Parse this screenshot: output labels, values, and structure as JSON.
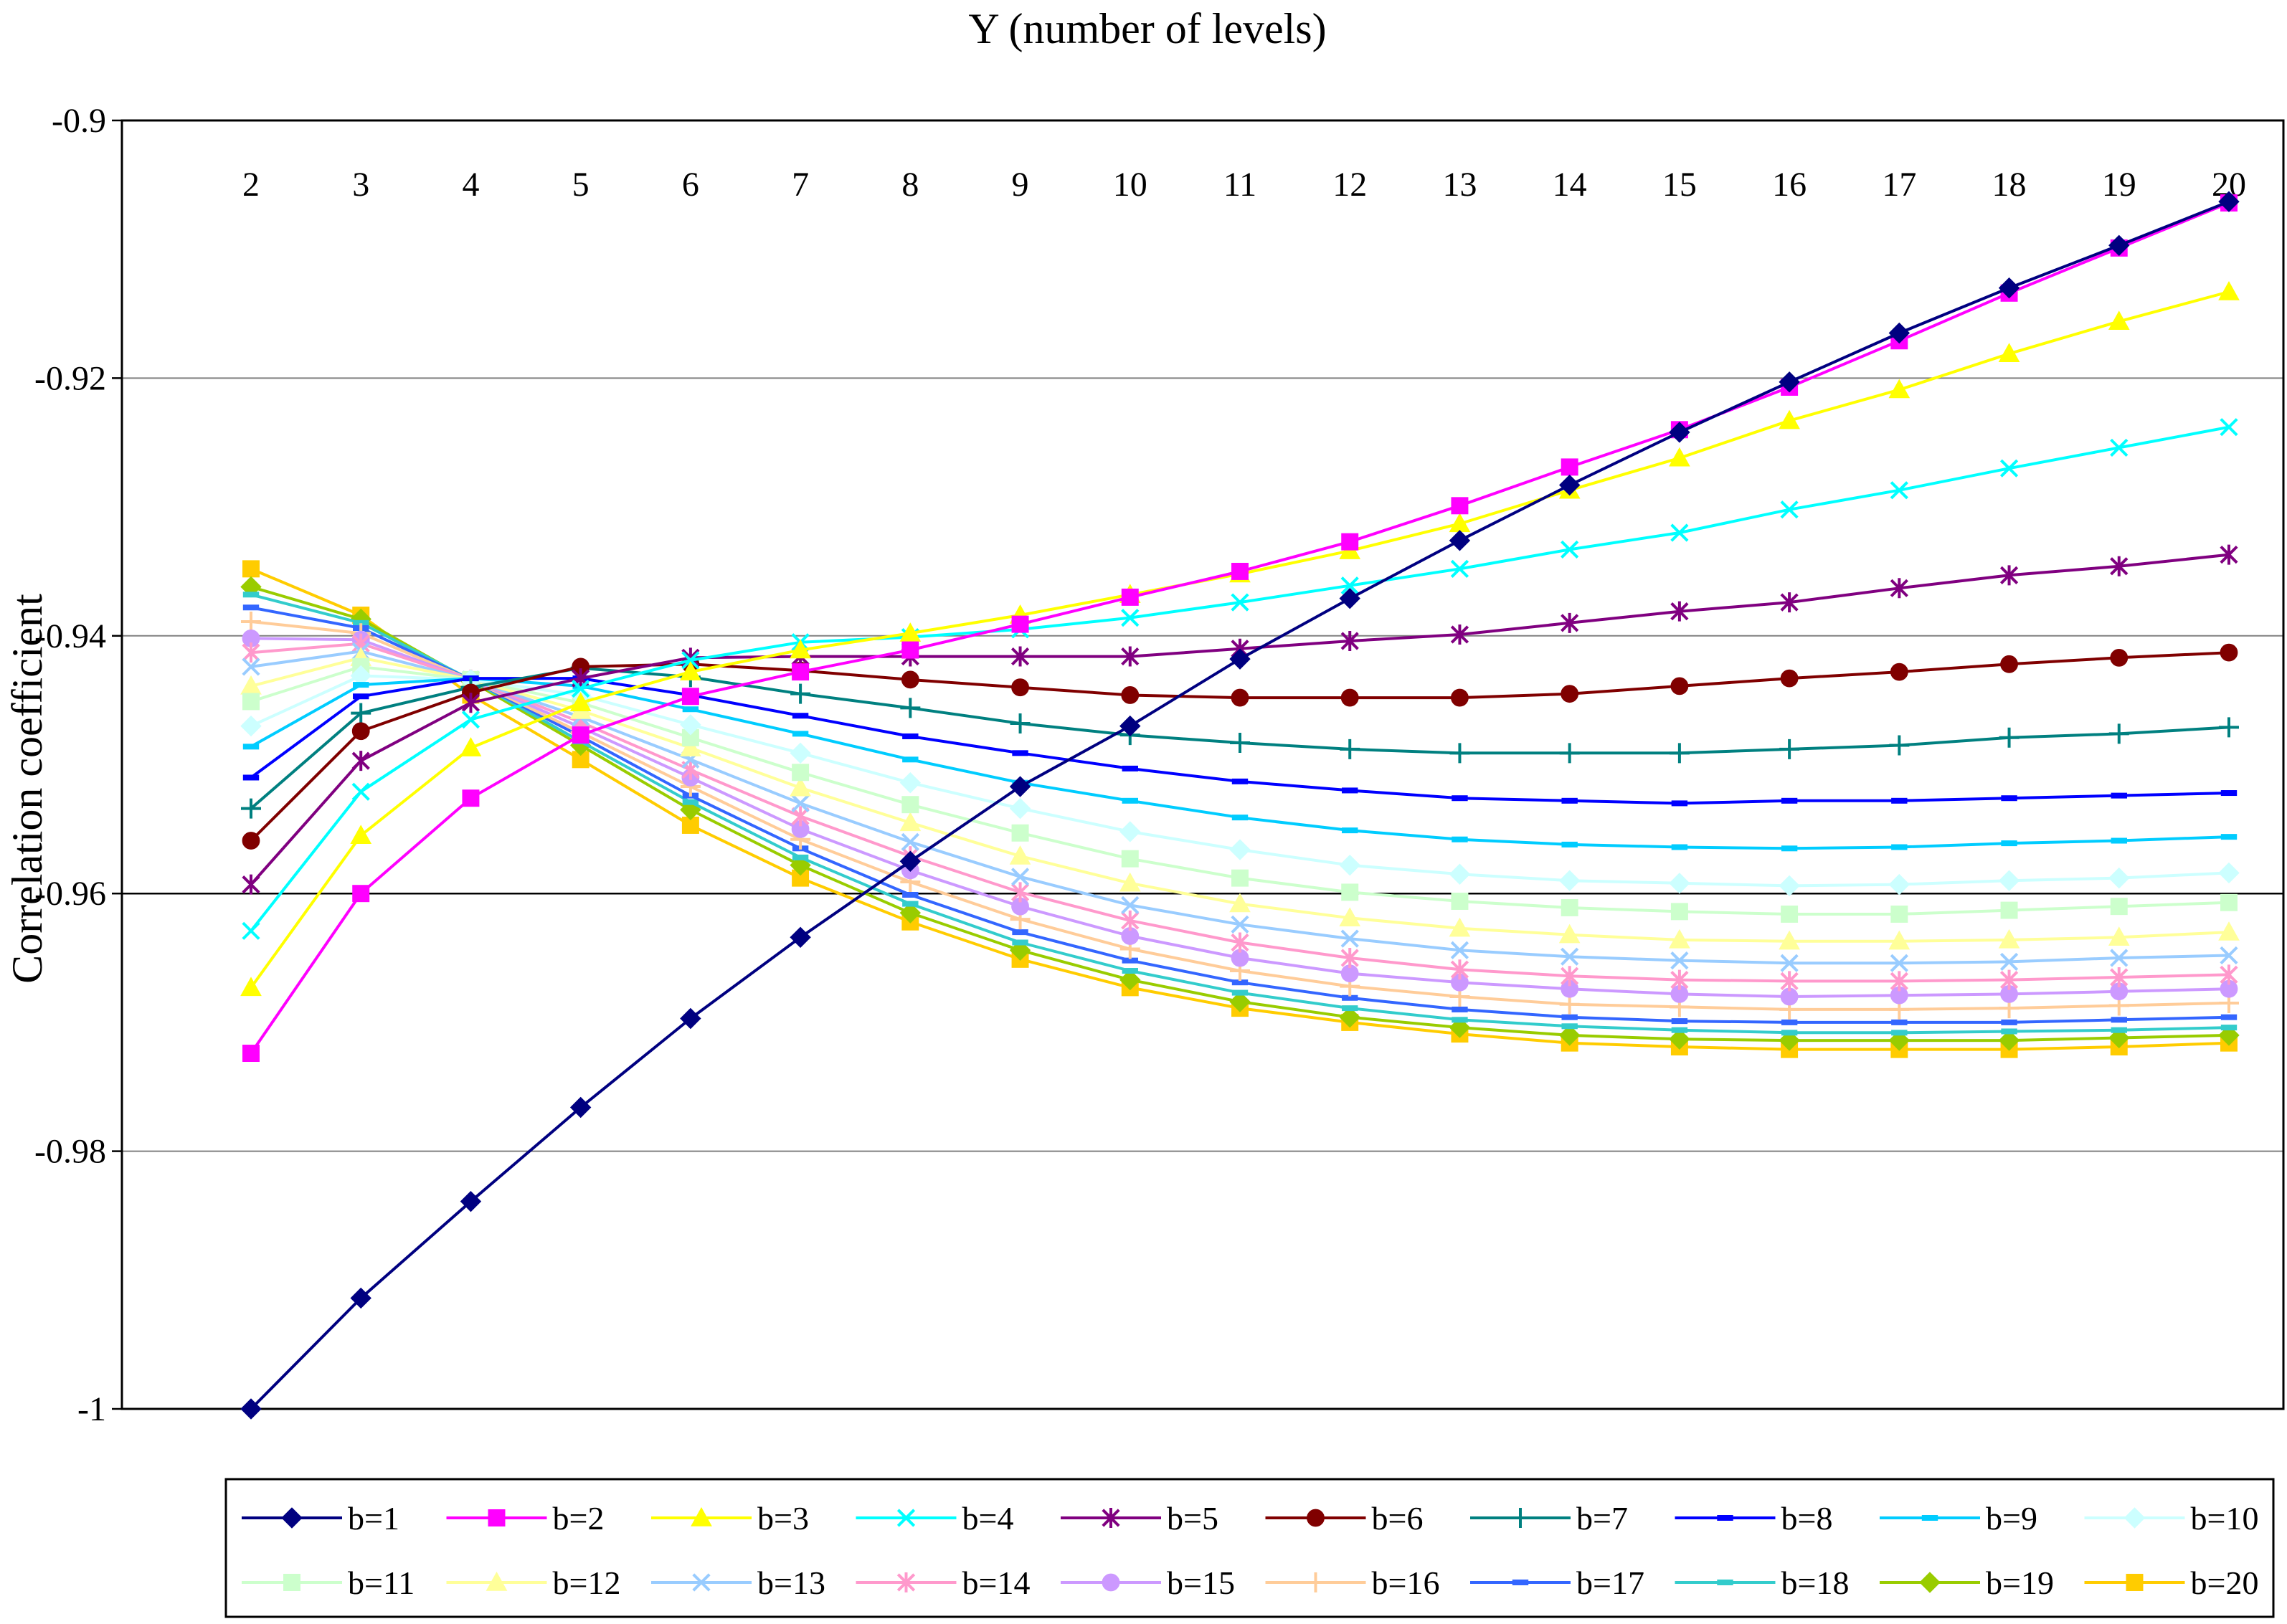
{
  "chart_data": {
    "type": "line",
    "title": "Y (number of levels)",
    "xlabel": "Y (number of levels)",
    "ylabel": "Correlation coefficient",
    "x": [
      2,
      3,
      4,
      5,
      6,
      7,
      8,
      9,
      10,
      11,
      12,
      13,
      14,
      15,
      16,
      17,
      18,
      19,
      20
    ],
    "ylim": [
      -1,
      -0.9
    ],
    "yticks": [
      -1,
      -0.98,
      -0.96,
      -0.94,
      -0.92,
      -0.9
    ],
    "ytick_labels": [
      "-1",
      "-0.98",
      "-0.96",
      "-0.94",
      "-0.92",
      "-0.9"
    ],
    "grid": "horizontal",
    "x_axis_position": "top",
    "legend_position": "bottom",
    "series": [
      {
        "name": "b=1",
        "color": "#000080",
        "marker": "diamond",
        "values": [
          -1.0,
          -0.9914,
          -0.9839,
          -0.9766,
          -0.9697,
          -0.9634,
          -0.9575,
          -0.9517,
          -0.947,
          -0.9418,
          -0.9371,
          -0.9326,
          -0.9283,
          -0.9242,
          -0.9203,
          -0.9165,
          -0.913,
          -0.9097,
          -0.9063
        ]
      },
      {
        "name": "b=2",
        "color": "#FF00FF",
        "marker": "square",
        "values": [
          -0.9724,
          -0.96,
          -0.9526,
          -0.9477,
          -0.9447,
          -0.9428,
          -0.9411,
          -0.9391,
          -0.937,
          -0.935,
          -0.9327,
          -0.9299,
          -0.9269,
          -0.924,
          -0.9207,
          -0.9171,
          -0.9134,
          -0.9099,
          -0.9064
        ]
      },
      {
        "name": "b=3",
        "color": "#FFFF00",
        "marker": "triangle",
        "values": [
          -0.9673,
          -0.9555,
          -0.9487,
          -0.9452,
          -0.9428,
          -0.9411,
          -0.9398,
          -0.9384,
          -0.9368,
          -0.9352,
          -0.9334,
          -0.9313,
          -0.9287,
          -0.9262,
          -0.9233,
          -0.9209,
          -0.9181,
          -0.9156,
          -0.9133
        ]
      },
      {
        "name": "b=4",
        "color": "#00FFFF",
        "marker": "x",
        "values": [
          -0.9629,
          -0.9521,
          -0.9465,
          -0.9441,
          -0.9419,
          -0.9405,
          -0.9401,
          -0.9395,
          -0.9386,
          -0.9374,
          -0.9361,
          -0.9348,
          -0.9333,
          -0.932,
          -0.9302,
          -0.9287,
          -0.927,
          -0.9254,
          -0.9238
        ]
      },
      {
        "name": "b=5",
        "color": "#800080",
        "marker": "asterisk",
        "values": [
          -0.9593,
          -0.9497,
          -0.9452,
          -0.9433,
          -0.9417,
          -0.9416,
          -0.9416,
          -0.9416,
          -0.9416,
          -0.941,
          -0.9404,
          -0.9399,
          -0.939,
          -0.9381,
          -0.9374,
          -0.9363,
          -0.9353,
          -0.9346,
          -0.9337
        ]
      },
      {
        "name": "b=6",
        "color": "#800000",
        "marker": "circle",
        "values": [
          -0.9559,
          -0.9474,
          -0.9444,
          -0.9424,
          -0.9422,
          -0.9427,
          -0.9434,
          -0.944,
          -0.9446,
          -0.9448,
          -0.9448,
          -0.9448,
          -0.9445,
          -0.9439,
          -0.9433,
          -0.9428,
          -0.9422,
          -0.9417,
          -0.9413
        ]
      },
      {
        "name": "b=7",
        "color": "#008080",
        "marker": "plus",
        "values": [
          -0.9534,
          -0.946,
          -0.944,
          -0.9425,
          -0.9432,
          -0.9445,
          -0.9456,
          -0.9468,
          -0.9477,
          -0.9483,
          -0.9488,
          -0.9491,
          -0.9491,
          -0.9491,
          -0.9488,
          -0.9485,
          -0.9479,
          -0.9476,
          -0.9471
        ]
      },
      {
        "name": "b=8",
        "color": "#0000FF",
        "marker": "dash",
        "values": [
          -0.951,
          -0.9447,
          -0.9433,
          -0.9433,
          -0.9446,
          -0.9462,
          -0.9478,
          -0.9491,
          -0.9503,
          -0.9513,
          -0.952,
          -0.9526,
          -0.9528,
          -0.953,
          -0.9528,
          -0.9528,
          -0.9526,
          -0.9524,
          -0.9522
        ]
      },
      {
        "name": "b=9",
        "color": "#00CCFF",
        "marker": "dash",
        "values": [
          -0.9486,
          -0.9438,
          -0.9433,
          -0.9439,
          -0.9457,
          -0.9476,
          -0.9496,
          -0.9514,
          -0.9528,
          -0.9541,
          -0.9551,
          -0.9558,
          -0.9562,
          -0.9564,
          -0.9565,
          -0.9564,
          -0.9561,
          -0.9559,
          -0.9556
        ]
      },
      {
        "name": "b=10",
        "color": "#CCFFFF",
        "marker": "diamond",
        "values": [
          -0.947,
          -0.9431,
          -0.9434,
          -0.9446,
          -0.9469,
          -0.9491,
          -0.9514,
          -0.9534,
          -0.9552,
          -0.9566,
          -0.9578,
          -0.9585,
          -0.959,
          -0.9592,
          -0.9594,
          -0.9593,
          -0.959,
          -0.9588,
          -0.9584
        ]
      },
      {
        "name": "b=11",
        "color": "#CCFFCC",
        "marker": "square",
        "values": [
          -0.9451,
          -0.9424,
          -0.9434,
          -0.9452,
          -0.9479,
          -0.9506,
          -0.9531,
          -0.9553,
          -0.9573,
          -0.9588,
          -0.9599,
          -0.9606,
          -0.9611,
          -0.9614,
          -0.9616,
          -0.9616,
          -0.9613,
          -0.961,
          -0.9607
        ]
      },
      {
        "name": "b=12",
        "color": "#FFFF99",
        "marker": "triangle",
        "values": [
          -0.9439,
          -0.9417,
          -0.9434,
          -0.9458,
          -0.9487,
          -0.9518,
          -0.9545,
          -0.9571,
          -0.9592,
          -0.9608,
          -0.9619,
          -0.9627,
          -0.9632,
          -0.9636,
          -0.9637,
          -0.9637,
          -0.9636,
          -0.9634,
          -0.963
        ]
      },
      {
        "name": "b=13",
        "color": "#99CCFF",
        "marker": "x",
        "values": [
          -0.9424,
          -0.9412,
          -0.9434,
          -0.9463,
          -0.9496,
          -0.953,
          -0.956,
          -0.9587,
          -0.9609,
          -0.9624,
          -0.9635,
          -0.9644,
          -0.9649,
          -0.9652,
          -0.9654,
          -0.9654,
          -0.9653,
          -0.965,
          -0.9648
        ]
      },
      {
        "name": "b=14",
        "color": "#FF99CC",
        "marker": "asterisk",
        "values": [
          -0.9413,
          -0.9406,
          -0.9434,
          -0.9467,
          -0.9504,
          -0.954,
          -0.9571,
          -0.9599,
          -0.9621,
          -0.9638,
          -0.965,
          -0.9659,
          -0.9664,
          -0.9667,
          -0.9668,
          -0.9668,
          -0.9667,
          -0.9665,
          -0.9663
        ]
      },
      {
        "name": "b=15",
        "color": "#CC99FF",
        "marker": "circle",
        "values": [
          -0.9402,
          -0.9403,
          -0.9434,
          -0.9471,
          -0.951,
          -0.955,
          -0.9582,
          -0.961,
          -0.9633,
          -0.965,
          -0.9662,
          -0.9669,
          -0.9674,
          -0.9678,
          -0.968,
          -0.9679,
          -0.9678,
          -0.9676,
          -0.9674
        ]
      },
      {
        "name": "b=16",
        "color": "#FFCC99",
        "marker": "plus",
        "values": [
          -0.9389,
          -0.9398,
          -0.9434,
          -0.9475,
          -0.9517,
          -0.9558,
          -0.9591,
          -0.962,
          -0.9643,
          -0.966,
          -0.9672,
          -0.968,
          -0.9686,
          -0.9688,
          -0.969,
          -0.969,
          -0.9689,
          -0.9687,
          -0.9685
        ]
      },
      {
        "name": "b=17",
        "color": "#3366FF",
        "marker": "dash",
        "values": [
          -0.9378,
          -0.9394,
          -0.9434,
          -0.9478,
          -0.9524,
          -0.9565,
          -0.9601,
          -0.963,
          -0.9652,
          -0.9669,
          -0.9681,
          -0.969,
          -0.9696,
          -0.9699,
          -0.97,
          -0.97,
          -0.97,
          -0.9698,
          -0.9696
        ]
      },
      {
        "name": "b=18",
        "color": "#33CCCC",
        "marker": "dash",
        "values": [
          -0.9368,
          -0.939,
          -0.9434,
          -0.9482,
          -0.9529,
          -0.9572,
          -0.9608,
          -0.9638,
          -0.966,
          -0.9677,
          -0.9689,
          -0.9698,
          -0.9703,
          -0.9706,
          -0.9708,
          -0.9708,
          -0.9707,
          -0.9706,
          -0.9704
        ]
      },
      {
        "name": "b=19",
        "color": "#99CC00",
        "marker": "diamond",
        "values": [
          -0.9362,
          -0.9387,
          -0.9435,
          -0.9485,
          -0.9535,
          -0.9578,
          -0.9615,
          -0.9644,
          -0.9667,
          -0.9684,
          -0.9696,
          -0.9704,
          -0.971,
          -0.9713,
          -0.9714,
          -0.9714,
          -0.9714,
          -0.9712,
          -0.971
        ]
      },
      {
        "name": "b=20",
        "color": "#FFCC00",
        "marker": "square",
        "values": [
          -0.9348,
          -0.9384,
          -0.9446,
          -0.9496,
          -0.9547,
          -0.9588,
          -0.9622,
          -0.9651,
          -0.9673,
          -0.9689,
          -0.97,
          -0.9709,
          -0.9716,
          -0.9719,
          -0.9721,
          -0.9721,
          -0.9721,
          -0.9719,
          -0.9716
        ]
      }
    ]
  }
}
